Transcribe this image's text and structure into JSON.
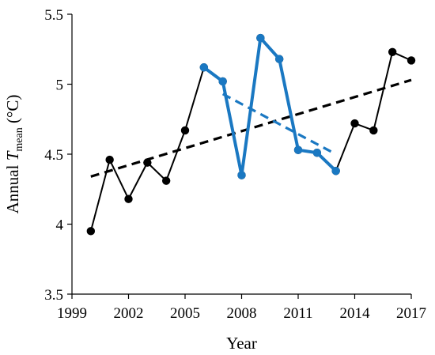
{
  "chart_data": {
    "type": "line",
    "xlabel": "Year",
    "ylabel": {
      "prefix": "Annual ",
      "var": "T",
      "sub": "mean",
      "unit": " (°C)"
    },
    "xlim": [
      1999,
      2017
    ],
    "ylim": [
      3.5,
      5.5
    ],
    "xticks": [
      1999,
      2002,
      2005,
      2008,
      2011,
      2014,
      2017
    ],
    "yticks": [
      {
        "value": 3.5,
        "label": "3.5"
      },
      {
        "value": 4,
        "label": "4"
      },
      {
        "value": 4.5,
        "label": "4.5"
      },
      {
        "value": 5,
        "label": "5"
      },
      {
        "value": 5.5,
        "label": "5.5"
      }
    ],
    "grid": false,
    "series": [
      {
        "x": [
          2000,
          2001,
          2002,
          2003,
          2004,
          2005,
          2006,
          2007,
          2008,
          2009,
          2010,
          2011,
          2012,
          2013,
          2014,
          2015,
          2016,
          2017
        ],
        "y": [
          3.95,
          4.46,
          4.18,
          4.44,
          4.31,
          4.67,
          5.12,
          5.02,
          4.35,
          5.33,
          5.18,
          4.53,
          4.51,
          4.38,
          4.72,
          4.67,
          5.23,
          5.17
        ],
        "color": "#000000",
        "line_width": 2
      },
      {
        "x": [
          2006,
          2007,
          2008,
          2009,
          2010,
          2011,
          2012,
          2013
        ],
        "y": [
          5.12,
          5.02,
          4.35,
          5.33,
          5.18,
          4.53,
          4.51,
          4.38
        ],
        "color": "#1a78c2",
        "line_width": 4
      }
    ],
    "trendlines": [
      {
        "x": [
          2000,
          2017
        ],
        "y": [
          4.34,
          5.03
        ],
        "color": "#000000",
        "style": "dashed"
      },
      {
        "x": [
          2007,
          2013
        ],
        "y": [
          4.93,
          4.5
        ],
        "color": "#1a78c2",
        "style": "dashed"
      }
    ]
  }
}
